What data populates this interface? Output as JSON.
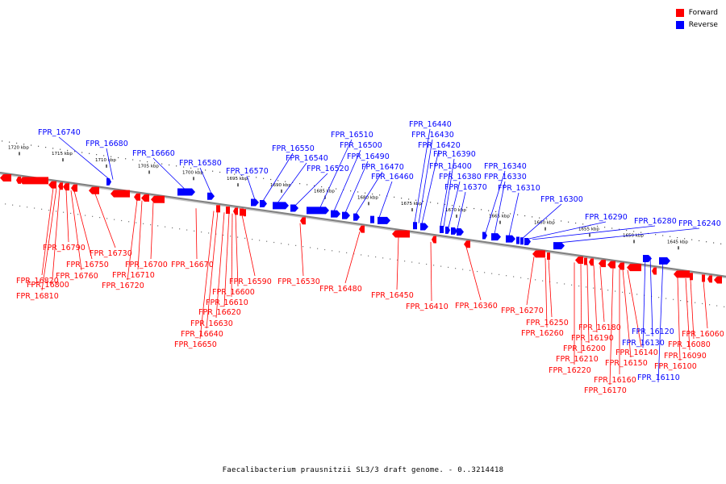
{
  "legend": {
    "forward_label": "Forward",
    "reverse_label": "Reverse",
    "forward_color": "#ff0000",
    "reverse_color": "#0000ff"
  },
  "caption": "Faecalibacterium prausnitzii SL3/3 draft genome. - 0..3214418",
  "track": {
    "scale_unit": "kbp",
    "ticks_kbp": [
      1720,
      1715,
      1710,
      1705,
      1700,
      1695,
      1690,
      1685,
      1680,
      1675,
      1670,
      1665,
      1660,
      1655,
      1650,
      1645
    ]
  },
  "genes": {
    "forward": [
      "FPR_16820",
      "FPR_16810",
      "FPR_16800",
      "FPR_16790",
      "FPR_16760",
      "FPR_16750",
      "FPR_16730",
      "FPR_16720",
      "FPR_16710",
      "FPR_16700",
      "FPR_16670",
      "FPR_16650",
      "FPR_16640",
      "FPR_16630",
      "FPR_16620",
      "FPR_16610",
      "FPR_16600",
      "FPR_16590",
      "FPR_16530",
      "FPR_16480",
      "FPR_16450",
      "FPR_16410",
      "FPR_16360",
      "FPR_16270",
      "FPR_16260",
      "FPR_16250",
      "FPR_16220",
      "FPR_16210",
      "FPR_16200",
      "FPR_16190",
      "FPR_16180",
      "FPR_16170",
      "FPR_16160",
      "FPR_16150",
      "FPR_16140",
      "FPR_16100",
      "FPR_16090",
      "FPR_16080",
      "FPR_16060"
    ],
    "reverse": [
      "FPR_16740",
      "FPR_16680",
      "FPR_16660",
      "FPR_16580",
      "FPR_16570",
      "FPR_16550",
      "FPR_16540",
      "FPR_16520",
      "FPR_16510",
      "FPR_16500",
      "FPR_16490",
      "FPR_16470",
      "FPR_16460",
      "FPR_16440",
      "FPR_16430",
      "FPR_16420",
      "FPR_16400",
      "FPR_16390",
      "FPR_16380",
      "FPR_16370",
      "FPR_16340",
      "FPR_16330",
      "FPR_16310",
      "FPR_16300",
      "FPR_16290",
      "FPR_16280",
      "FPR_16240",
      "FPR_16130",
      "FPR_16120",
      "FPR_16110"
    ]
  }
}
